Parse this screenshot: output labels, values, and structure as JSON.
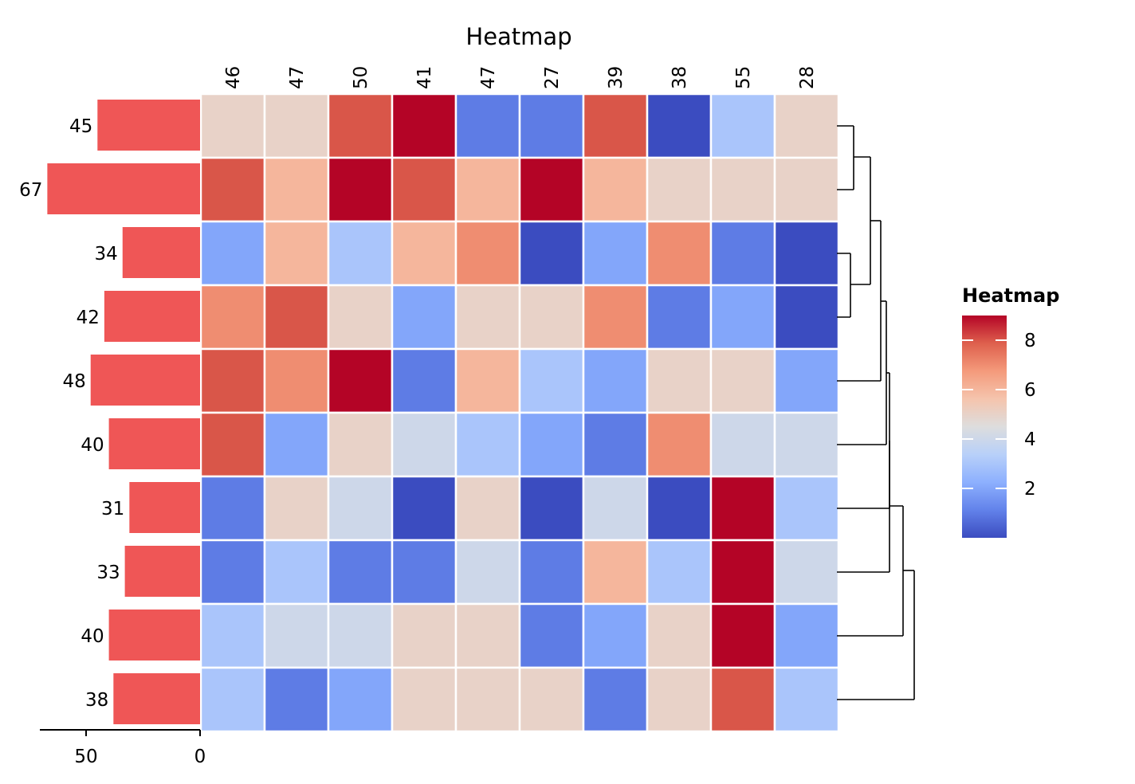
{
  "chart_data": {
    "type": "heatmap",
    "title": "Heatmap",
    "col_labels": [
      "46",
      "47",
      "50",
      "41",
      "47",
      "27",
      "39",
      "38",
      "55",
      "28"
    ],
    "row_labels": [
      "45",
      "67",
      "34",
      "42",
      "48",
      "40",
      "31",
      "33",
      "40",
      "38"
    ],
    "row_bar_values": [
      45,
      67,
      34,
      42,
      48,
      40,
      31,
      33,
      40,
      38
    ],
    "row_bar_color": "#ef5656",
    "row_bar_axis": {
      "ticks": [
        50,
        0
      ],
      "range": [
        0,
        70
      ],
      "reversed": true
    },
    "values": [
      [
        5,
        5,
        8,
        9,
        1,
        1,
        8,
        0,
        3,
        5
      ],
      [
        8,
        6,
        9,
        8,
        6,
        9,
        6,
        5,
        5,
        5
      ],
      [
        2,
        6,
        3,
        6,
        7,
        0,
        2,
        7,
        1,
        0
      ],
      [
        7,
        8,
        5,
        2,
        5,
        5,
        7,
        1,
        2,
        0
      ],
      [
        8,
        7,
        9,
        1,
        6,
        3,
        2,
        5,
        5,
        2
      ],
      [
        8,
        2,
        5,
        4,
        3,
        2,
        1,
        7,
        4,
        4
      ],
      [
        1,
        5,
        4,
        0,
        5,
        0,
        4,
        0,
        9,
        3
      ],
      [
        1,
        3,
        1,
        1,
        4,
        1,
        6,
        3,
        9,
        4
      ],
      [
        3,
        4,
        4,
        5,
        5,
        1,
        2,
        5,
        9,
        2
      ],
      [
        3,
        1,
        2,
        5,
        5,
        5,
        1,
        5,
        8,
        3
      ]
    ],
    "colorbar": {
      "title": "Heatmap",
      "ticks": [
        2,
        4,
        6,
        8
      ],
      "range": [
        0,
        9
      ],
      "colormap": "coolwarm"
    },
    "row_dendrogram": true
  }
}
